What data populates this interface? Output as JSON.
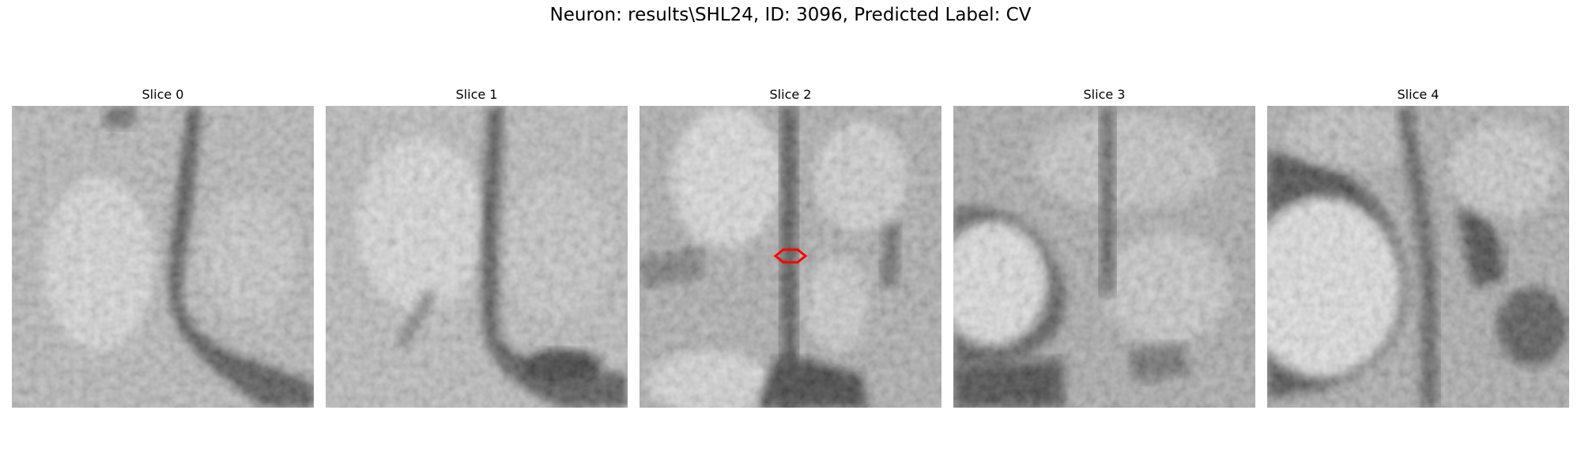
{
  "figure": {
    "title": "Neuron: results\\SHL24, ID: 3096, Predicted Label: CV"
  },
  "panels": [
    {
      "title": "Slice 0",
      "description": "grayscale EM crop, dark vertical membrane curving down-left, dark bottom-right corner"
    },
    {
      "title": "Slice 1",
      "description": "grayscale EM crop, dark curved membrane in center, dark blob at bottom-right"
    },
    {
      "title": "Slice 2",
      "description": "grayscale EM crop, dark vertical line through center with red contour marker, dark junction at bottom"
    },
    {
      "title": "Slice 3",
      "description": "grayscale EM crop, bright round cell body at left outlined by dark membrane"
    },
    {
      "title": "Slice 4",
      "description": "grayscale EM crop, large bright round cell on left, dark membrane curving on right"
    }
  ],
  "marker": {
    "color": "#ff0000",
    "panel": 2
  }
}
